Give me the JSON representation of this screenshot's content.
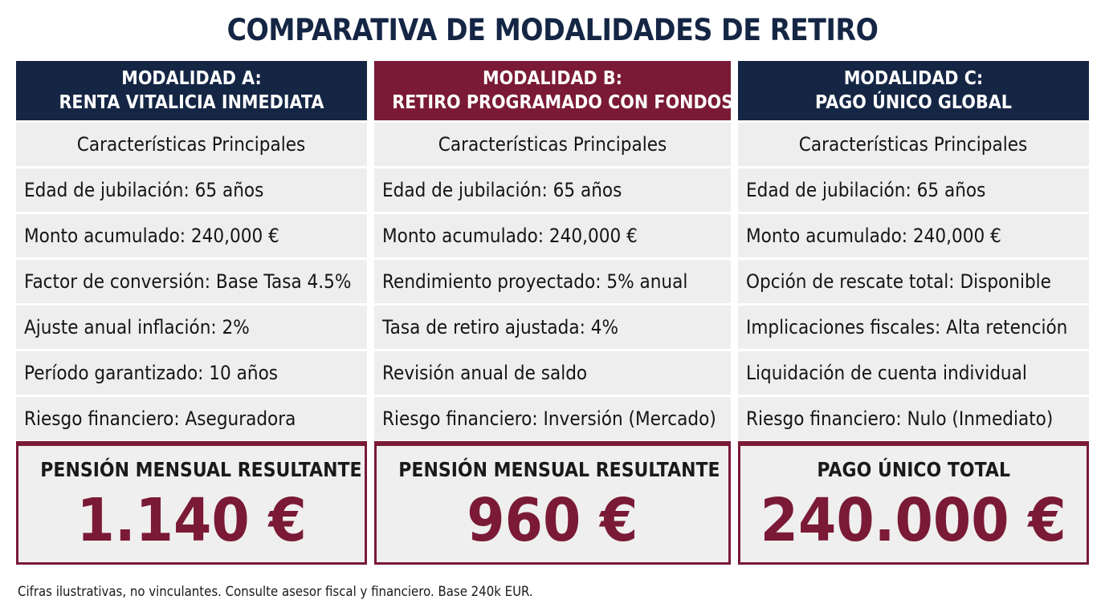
{
  "title": "COMPARATIVA DE MODALIDADES DE RETIRO",
  "colors": {
    "navy": "#152645",
    "burgundy": "#7a1a36",
    "row_bg": "#eeeeee"
  },
  "columns": [
    {
      "header_line1": "MODALIDAD A:",
      "header_line2": "RENTA VITALICIA INMEDIATA",
      "section": "Características Principales",
      "rows": [
        "Edad de jubilación: 65 años",
        "Monto acumulado: 240,000 €",
        "Factor de conversión: Base Tasa 4.5%",
        "Ajuste anual inflación: 2%",
        "Período garantizado: 10 años",
        "Riesgo financiero: Aseguradora"
      ],
      "result_label": "PENSIÓN MENSUAL RESULTANTE",
      "result_value": "1.140 €"
    },
    {
      "header_line1": "MODALIDAD B:",
      "header_line2": "RETIRO PROGRAMADO CON FONDOS",
      "section": "Características Principales",
      "rows": [
        "Edad de jubilación: 65 años",
        "Monto acumulado: 240,000 €",
        "Rendimiento proyectado: 5% anual",
        "Tasa de retiro ajustada: 4%",
        "Revisión anual de saldo",
        "Riesgo financiero: Inversión (Mercado)"
      ],
      "result_label": "PENSIÓN MENSUAL RESULTANTE",
      "result_value": "960 €"
    },
    {
      "header_line1": "MODALIDAD C:",
      "header_line2": "PAGO ÚNICO GLOBAL",
      "section": "Características Principales",
      "rows": [
        "Edad de jubilación: 65 años",
        "Monto acumulado: 240,000 €",
        "Opción de rescate total: Disponible",
        "Implicaciones fiscales: Alta retención",
        "Liquidación de cuenta individual",
        "Riesgo financiero: Nulo (Inmediato)"
      ],
      "result_label": "PAGO ÚNICO TOTAL",
      "result_value": "240.000 €"
    }
  ],
  "footnote": "Cifras ilustrativas, no vinculantes. Consulte asesor fiscal y financiero. Base 240k EUR."
}
